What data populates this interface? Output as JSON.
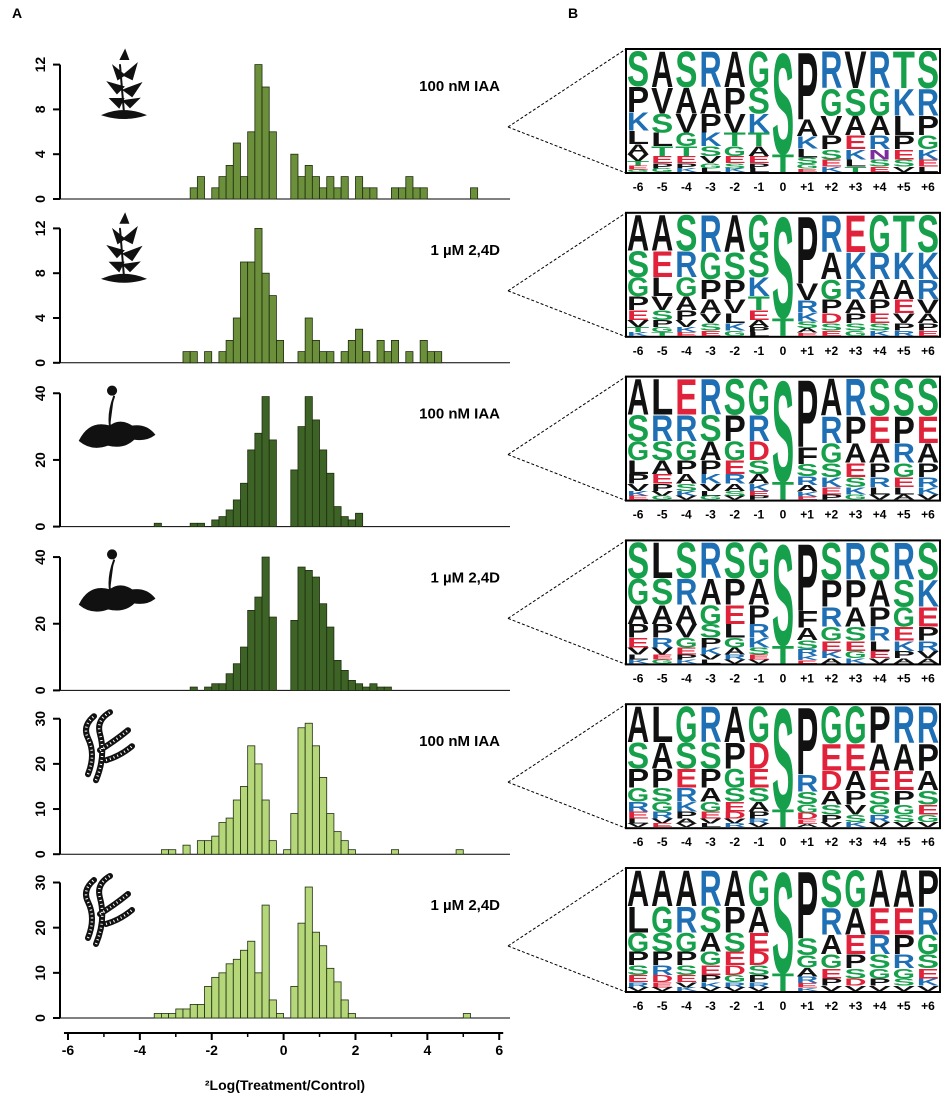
{
  "panel_labels": [
    "A",
    "B"
  ],
  "chart_data": [
    {
      "type": "histogram",
      "label": "100 nM IAA",
      "color": "#6b8f3a",
      "xlim": [
        -6.25,
        6.3
      ],
      "ylim": [
        0,
        12.5
      ],
      "yticks": [
        0,
        4,
        8,
        12
      ],
      "bins": [
        -4,
        -3.8,
        -3.6,
        -3.4,
        -3.2,
        -3,
        -2.8,
        -2.6,
        -2.4,
        -2.2,
        -2,
        -1.8,
        -1.6,
        -1.4,
        -1.2,
        -1,
        -0.8,
        -0.6,
        -0.4,
        -0.2,
        0,
        0.2,
        0.4,
        0.6,
        0.8,
        1,
        1.2,
        1.4,
        1.6,
        1.8,
        2,
        2.2,
        2.4,
        2.6,
        2.8,
        3,
        3.2,
        3.4,
        3.6,
        3.8,
        4,
        4.2,
        4.4,
        4.6,
        4.8,
        5,
        5.2,
        5.4
      ],
      "values": [
        0,
        0,
        0,
        0,
        0,
        0,
        0,
        1,
        2,
        0,
        1,
        2,
        3,
        5,
        2,
        6,
        12,
        10,
        6,
        0,
        0,
        4,
        2,
        3,
        2,
        1,
        2,
        1,
        2,
        0,
        2,
        1,
        1,
        0,
        0,
        1,
        1,
        2,
        1,
        1,
        0,
        0,
        0,
        0,
        0,
        0,
        1
      ]
    },
    {
      "type": "histogram",
      "label": "1 µM 2,4D",
      "color": "#6b8f3a",
      "xlim": [
        -6.25,
        6.3
      ],
      "ylim": [
        0,
        12.5
      ],
      "yticks": [
        0,
        4,
        8,
        12
      ],
      "bins": [
        -4,
        -3.8,
        -3.6,
        -3.4,
        -3.2,
        -3,
        -2.8,
        -2.6,
        -2.4,
        -2.2,
        -2,
        -1.8,
        -1.6,
        -1.4,
        -1.2,
        -1,
        -0.8,
        -0.6,
        -0.4,
        -0.2,
        0,
        0.2,
        0.4,
        0.6,
        0.8,
        1,
        1.2,
        1.4,
        1.6,
        1.8,
        2,
        2.2,
        2.4,
        2.6,
        2.8,
        3,
        3.2,
        3.4,
        3.6,
        3.8,
        4,
        4.2,
        4.4,
        4.6,
        4.8,
        5,
        5.2,
        5.4
      ],
      "values": [
        0,
        0,
        0,
        0,
        0,
        0,
        1,
        1,
        0,
        1,
        0,
        1,
        2,
        4,
        9,
        9,
        12,
        8,
        6,
        2,
        0,
        0,
        1,
        4,
        2,
        1,
        1,
        0,
        1,
        2,
        3,
        1,
        0,
        2,
        1,
        2,
        0,
        1,
        0,
        2,
        1,
        1,
        0,
        0,
        0,
        0,
        0
      ]
    },
    {
      "type": "histogram",
      "label": "100 nM IAA",
      "color": "#3d6426",
      "xlim": [
        -6.25,
        6.3
      ],
      "ylim": [
        0,
        42
      ],
      "yticks": [
        0,
        20,
        40
      ],
      "bins": [
        -4,
        -3.8,
        -3.6,
        -3.4,
        -3.2,
        -3,
        -2.8,
        -2.6,
        -2.4,
        -2.2,
        -2,
        -1.8,
        -1.6,
        -1.4,
        -1.2,
        -1,
        -0.8,
        -0.6,
        -0.4,
        -0.2,
        0,
        0.2,
        0.4,
        0.6,
        0.8,
        1,
        1.2,
        1.4,
        1.6,
        1.8,
        2,
        2.2,
        2.4,
        2.6,
        2.8,
        3,
        3.2,
        3.4,
        3.6,
        3.8,
        4,
        4.2,
        4.4,
        4.6,
        4.8,
        5,
        5.2,
        5.4
      ],
      "values": [
        0,
        0,
        1,
        0,
        0,
        0,
        0,
        1,
        1,
        0,
        2,
        3,
        5,
        8,
        13,
        23,
        28,
        39,
        26,
        0,
        0,
        17,
        30,
        39,
        32,
        23,
        16,
        6,
        3,
        2,
        4,
        0,
        0,
        0,
        0,
        0,
        0,
        0,
        0,
        0,
        0,
        0,
        0,
        0,
        0,
        0,
        0
      ]
    },
    {
      "type": "histogram",
      "label": "1 µM 2,4D",
      "color": "#3d6426",
      "xlim": [
        -6.25,
        6.3
      ],
      "ylim": [
        0,
        42
      ],
      "yticks": [
        0,
        20,
        40
      ],
      "bins": [
        -4,
        -3.8,
        -3.6,
        -3.4,
        -3.2,
        -3,
        -2.8,
        -2.6,
        -2.4,
        -2.2,
        -2,
        -1.8,
        -1.6,
        -1.4,
        -1.2,
        -1,
        -0.8,
        -0.6,
        -0.4,
        -0.2,
        0,
        0.2,
        0.4,
        0.6,
        0.8,
        1,
        1.2,
        1.4,
        1.6,
        1.8,
        2,
        2.2,
        2.4,
        2.6,
        2.8,
        3,
        3.2,
        3.4,
        3.6,
        3.8,
        4,
        4.2,
        4.4,
        4.6,
        4.8,
        5,
        5.2,
        5.4
      ],
      "values": [
        0,
        0,
        0,
        0,
        0,
        0,
        0,
        1,
        0,
        1,
        2,
        2,
        5,
        8,
        13,
        24,
        28,
        40,
        22,
        0,
        0,
        21,
        37,
        36,
        34,
        26,
        19,
        9,
        6,
        3,
        2,
        1,
        2,
        1,
        1,
        0,
        0,
        0,
        0,
        0,
        0,
        0,
        0,
        0,
        0,
        0,
        0
      ]
    },
    {
      "type": "histogram",
      "label": "100 nM IAA",
      "color": "#b5d77a",
      "xlim": [
        -6.25,
        6.3
      ],
      "ylim": [
        0,
        31
      ],
      "yticks": [
        0,
        10,
        20,
        30
      ],
      "bins": [
        -4,
        -3.8,
        -3.6,
        -3.4,
        -3.2,
        -3,
        -2.8,
        -2.6,
        -2.4,
        -2.2,
        -2,
        -1.8,
        -1.6,
        -1.4,
        -1.2,
        -1,
        -0.8,
        -0.6,
        -0.4,
        -0.2,
        0,
        0.2,
        0.4,
        0.6,
        0.8,
        1,
        1.2,
        1.4,
        1.6,
        1.8,
        2,
        2.2,
        2.4,
        2.6,
        2.8,
        3,
        3.2,
        3.4,
        3.6,
        3.8,
        4,
        4.2,
        4.4,
        4.6,
        4.8,
        5,
        5.2,
        5.4
      ],
      "values": [
        0,
        0,
        0,
        1,
        1,
        0,
        2,
        0,
        3,
        3,
        4,
        7,
        8,
        12,
        15,
        24,
        20,
        12,
        3,
        0,
        1,
        9,
        28,
        29,
        24,
        17,
        9,
        5,
        3,
        1,
        0,
        0,
        0,
        0,
        0,
        1,
        0,
        0,
        0,
        0,
        0,
        0,
        0,
        0,
        1,
        0,
        0
      ]
    },
    {
      "type": "histogram",
      "label": "1 µM 2,4D",
      "color": "#b5d77a",
      "xlim": [
        -6.25,
        6.3
      ],
      "ylim": [
        0,
        31
      ],
      "yticks": [
        0,
        10,
        20,
        30
      ],
      "bins": [
        -4,
        -3.8,
        -3.6,
        -3.4,
        -3.2,
        -3,
        -2.8,
        -2.6,
        -2.4,
        -2.2,
        -2,
        -1.8,
        -1.6,
        -1.4,
        -1.2,
        -1,
        -0.8,
        -0.6,
        -0.4,
        -0.2,
        0,
        0.2,
        0.4,
        0.6,
        0.8,
        1,
        1.2,
        1.4,
        1.6,
        1.8,
        2,
        2.2,
        2.4,
        2.6,
        2.8,
        3,
        3.2,
        3.4,
        3.6,
        3.8,
        4,
        4.2,
        4.4,
        4.6,
        4.8,
        5,
        5.2,
        5.4
      ],
      "values": [
        0,
        0,
        1,
        1,
        1,
        2,
        2,
        3,
        3,
        7,
        9,
        10,
        12,
        13,
        15,
        17,
        10,
        25,
        4,
        1,
        0,
        7,
        21,
        29,
        19,
        16,
        11,
        8,
        4,
        1,
        0,
        0,
        0,
        0,
        0,
        0,
        0,
        0,
        0,
        0,
        0,
        0,
        0,
        0,
        0,
        1,
        0
      ],
      "xticks": [
        -6,
        -4,
        -2,
        0,
        2,
        4,
        6
      ],
      "xlabel": "²Log(Treatment/Control)"
    }
  ],
  "logo_positions": [
    "-6",
    "-5",
    "-4",
    "-3",
    "-2",
    "-1",
    "0",
    "+1",
    "+2",
    "+3",
    "+4",
    "+5",
    "+6"
  ],
  "logos": [
    {
      "columns": [
        "SPKLAVTEG",
        "AVSLTEPG",
        "SAVGTEPK",
        "RAPKSVGL",
        "APVTGESK",
        "GSKTAEPL",
        "ST",
        "PAKLSGE",
        "RGVPSEK",
        "VSAEKLT",
        "RGARNSE",
        "TKLPESV",
        "SRPGKEL"
      ]
    },
    {
      "columns": [
        "ASGPEVTK",
        "AELVSPGT",
        "SRGAPVKE",
        "RGPAVSE",
        "ASPVLKG",
        "GSKTEAPL",
        "ST",
        "PVRKSAE",
        "RAGPDSE",
        "EKRAPSG",
        "GRAPESK",
        "TKAEVPR",
        "SKRVAPE"
      ]
    },
    {
      "columns": [
        "ASGLPVKE",
        "LRSAEPVG",
        "ERGPASKV",
        "RSAPKVLG",
        "SPGERASV",
        "GRDSAKEP",
        "ST",
        "PFSRAKE",
        "ARGSKEP",
        "RPAESKG",
        "SEAPRLV",
        "SPRGELA",
        "SEAPRKV"
      ]
    },
    {
      "columns": [
        "SGAPEVLK",
        "LSAPRVEG",
        "SRAVGEPK",
        "RAGSPKVL",
        "SPELGARV",
        "GAPRKSEV",
        "ST",
        "PFASRKE",
        "SPRGEKA",
        "RPASEGK",
        "SAPRLEV",
        "RSGEKPA",
        "SKEPRVA"
      ]
    },
    {
      "columns": [
        "ASPGRELV",
        "LAPSGRVE",
        "GSERKPAV",
        "RSPAGEVL",
        "APGSEDVR",
        "GDESAPRV",
        "ST",
        "PRSGDEA",
        "GEDASPV",
        "GEAPVSK",
        "PAESGRV",
        "RAEPGSV",
        "RPASEGV"
      ]
    },
    {
      "columns": [
        "ALGPSERV",
        "AGSPRDEV",
        "ARGPSEVK",
        "RSAGEPKV",
        "APSEDGRV",
        "GAEDSPRV",
        "ST",
        "PSGAREK",
        "SRAGEPV",
        "GAEPSDV",
        "AERSGPV",
        "AEPRGSV",
        "PRGSEKV"
      ]
    }
  ]
}
